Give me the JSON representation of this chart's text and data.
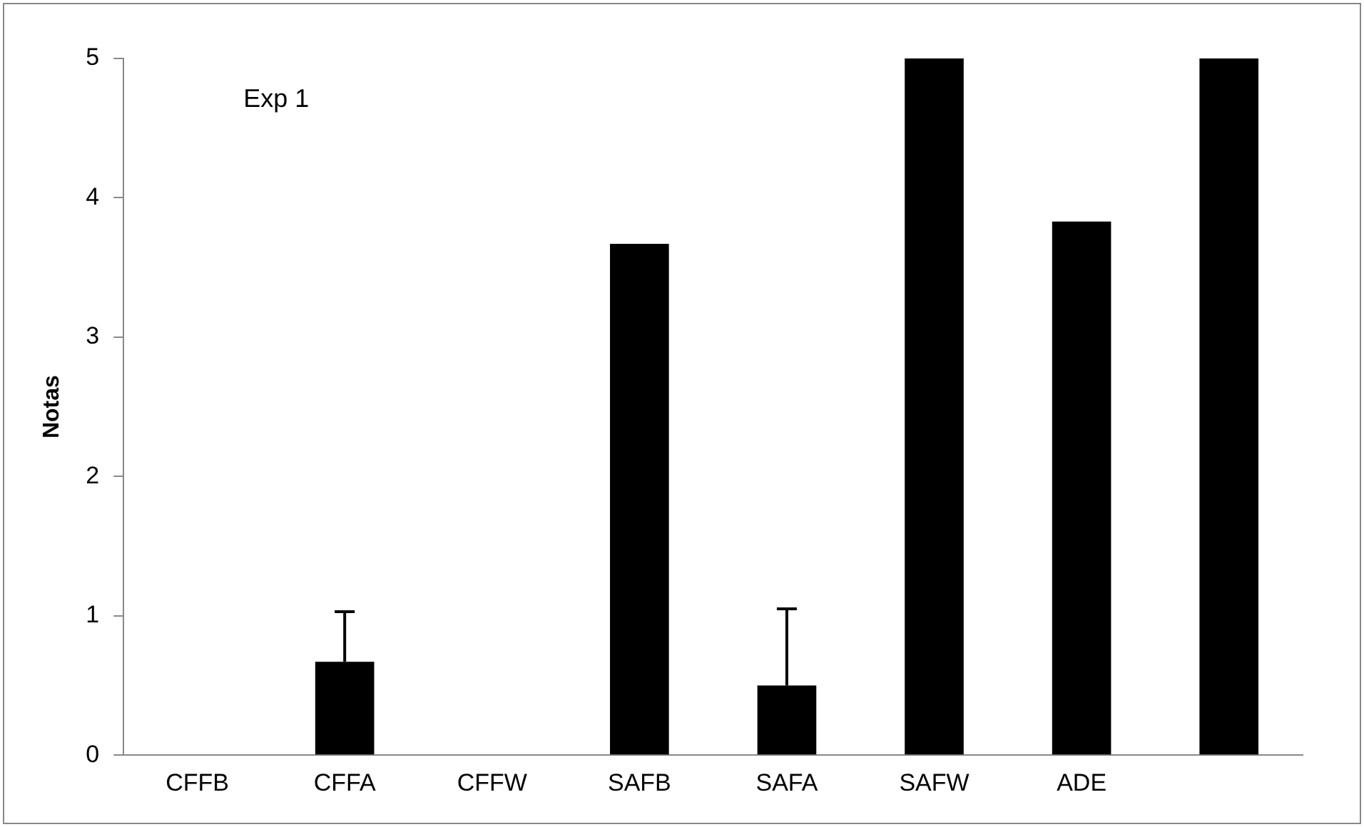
{
  "chart_data": {
    "type": "bar",
    "ylabel": "Notas",
    "annotations": [
      "Exp 1"
    ],
    "categories": [
      "CFFB",
      "CFFA",
      "CFFW",
      "SAFB",
      "SAFA",
      "SAFW",
      "ADE",
      null
    ],
    "values": [
      0,
      0.67,
      0,
      3.67,
      0.5,
      5,
      3.83,
      5
    ],
    "errors": [
      null,
      [
        0.67,
        1.03
      ],
      null,
      null,
      [
        0.5,
        1.05
      ],
      null,
      null,
      null
    ],
    "color": "#000000",
    "ylim": [
      0,
      5
    ],
    "yticks": [
      0,
      1,
      2,
      3,
      4,
      5
    ],
    "grid": false,
    "legend": false
  }
}
